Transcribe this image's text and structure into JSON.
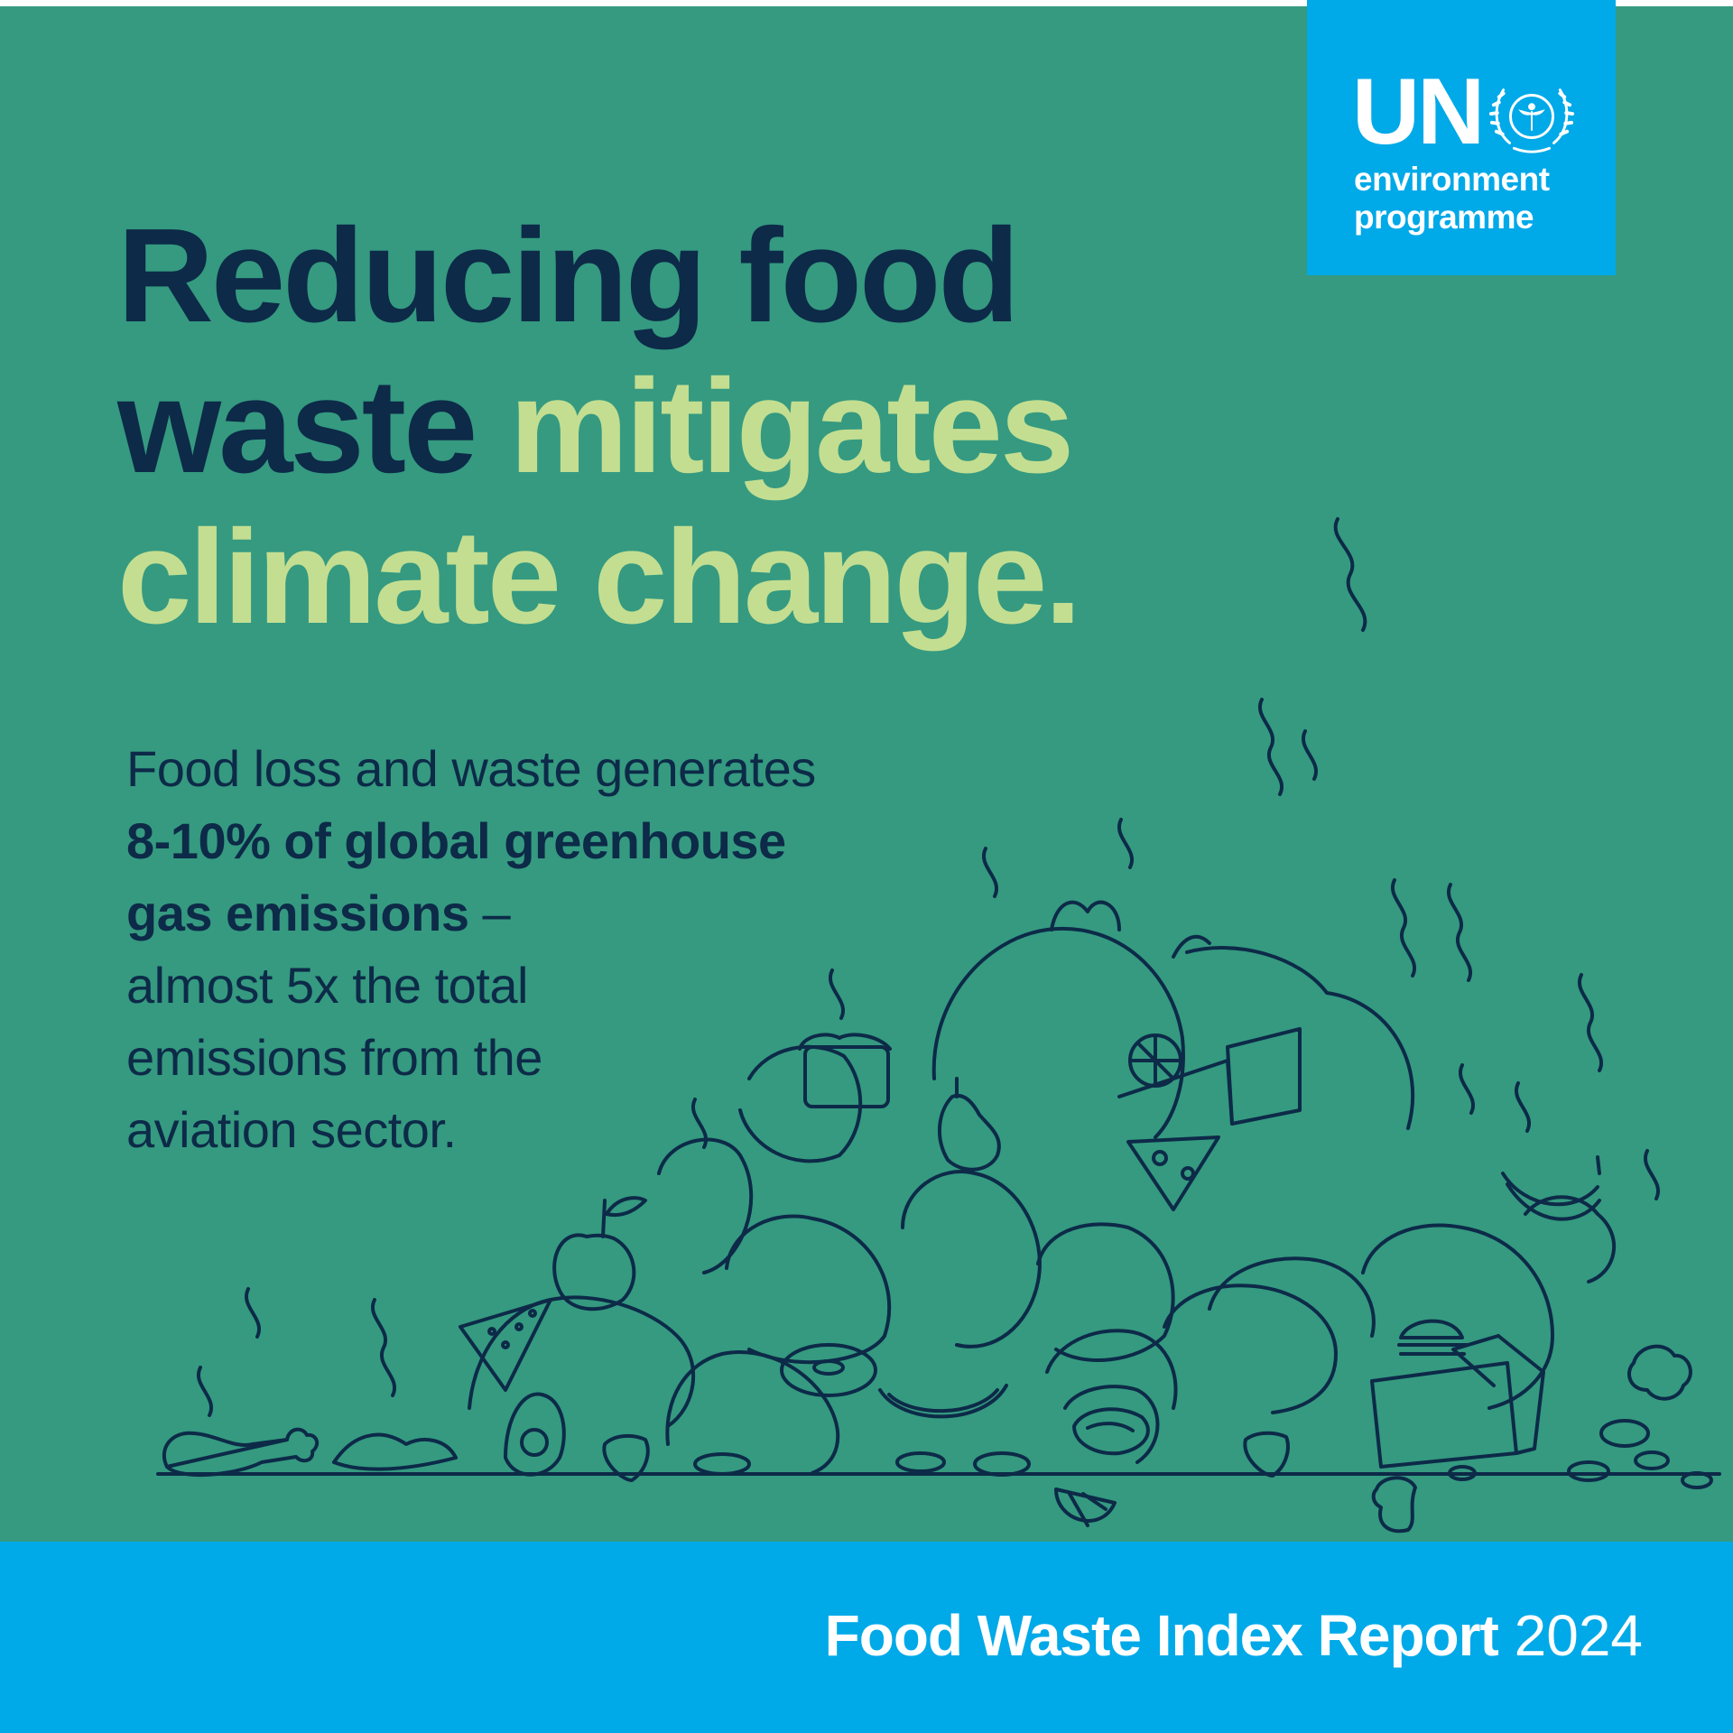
{
  "logo": {
    "brand": "UN",
    "line1": "environment",
    "line2": "programme",
    "emblem_icon": "un-wreath-emblem-icon"
  },
  "headline": {
    "line1": "Reducing food",
    "line2_dark": "waste",
    "line2_light": "mitigates",
    "line3": "climate change."
  },
  "body": {
    "intro": "Food loss and waste generates",
    "bold1": "8-10% of global greenhouse",
    "bold2": "gas emissions",
    "dash": "–",
    "line4": "almost 5x the total",
    "line5": "emissions from the",
    "line6": "aviation sector."
  },
  "illustration": {
    "icon": "food-waste-pile-icon"
  },
  "footer": {
    "title_bold": "Food Waste Index Report",
    "year": "2024"
  },
  "colors": {
    "background": "#359a80",
    "dark_text": "#0d2a48",
    "highlight_green": "#c3de91",
    "un_blue": "#00a9e8",
    "white": "#ffffff"
  }
}
